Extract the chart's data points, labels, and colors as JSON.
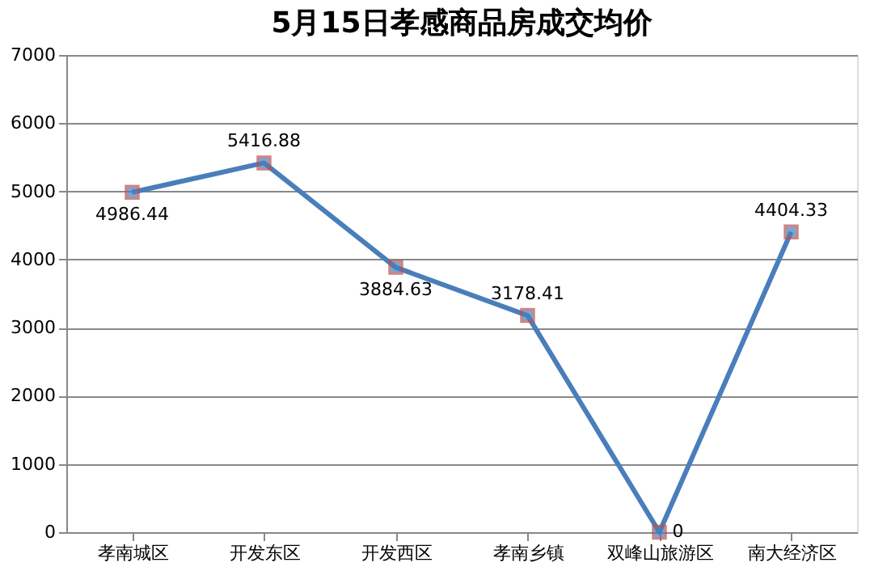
{
  "chart_data": {
    "type": "line",
    "title": "5月15日孝感商品房成交均价",
    "categories": [
      "孝南城区",
      "开发东区",
      "开发西区",
      "孝南乡镇",
      "双峰山旅游区",
      "南大经济区"
    ],
    "series": [
      {
        "color": "#4a7ebb",
        "values": [
          4986.44,
          5416.88,
          3884.63,
          3178.41,
          0,
          4404.33
        ]
      }
    ],
    "ylim": [
      0,
      7000
    ],
    "yticks": [
      0,
      1000,
      2000,
      3000,
      4000,
      5000,
      6000,
      7000
    ],
    "grid": "y",
    "marker": "square",
    "line_style": "solid",
    "data_labels": true,
    "legend": false
  }
}
